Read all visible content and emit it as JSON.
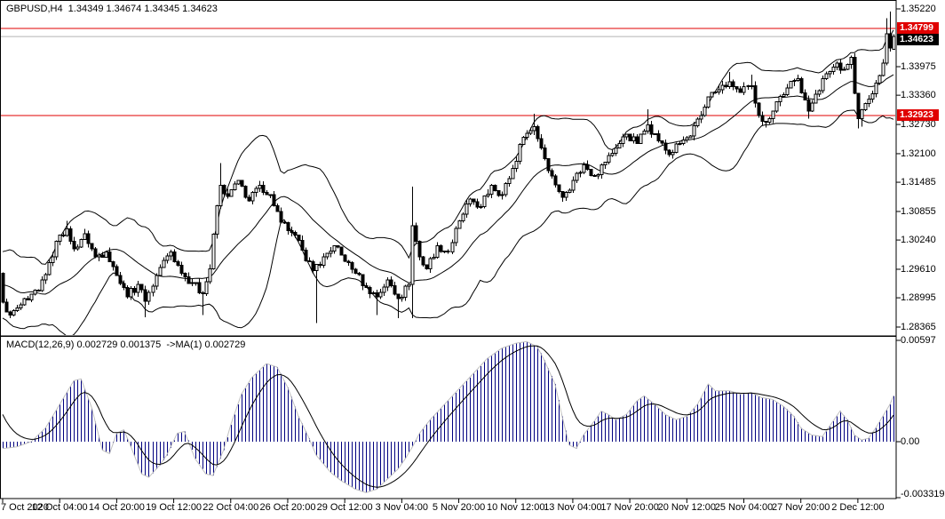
{
  "window": {
    "title_line": "GBPUSD,H4  1.34349 1.34674 1.34345 1.34623"
  },
  "macd_pane": {
    "label": "MACD(12,26,9) 0.002729 0.001375  ->MA(1) 0.002729"
  },
  "price_axis": {
    "tick_labels": [
      "1.35220",
      "1.33975",
      "1.33360",
      "1.32730",
      "1.32100",
      "1.31485",
      "1.30855",
      "1.30240",
      "1.29610",
      "1.28995",
      "1.28365"
    ],
    "tags": [
      {
        "label": "1.34799",
        "value": 1.34799,
        "bg": "#e00000",
        "fg": "#ffffff",
        "role": "red-level"
      },
      {
        "label": "1.34623",
        "value": 1.34623,
        "bg": "#000000",
        "fg": "#ffffff",
        "role": "bid"
      },
      {
        "label": "1.32923",
        "value": 1.32923,
        "bg": "#e00000",
        "fg": "#ffffff",
        "role": "red-level"
      }
    ]
  },
  "macd_axis": {
    "tick_labels": [
      "0.00597",
      "0.00",
      "-0.003319"
    ],
    "values": [
      0.00597,
      0,
      -0.003319
    ]
  },
  "time_axis": {
    "labels": [
      "7 Oct 2020",
      "12 Oct 04:00",
      "14 Oct 20:00",
      "19 Oct 12:00",
      "22 Oct 04:00",
      "26 Oct 20:00",
      "29 Oct 12:00",
      "3 Nov 04:00",
      "5 Nov 20:00",
      "10 Nov 12:00",
      "13 Nov 04:00",
      "17 Nov 20:00",
      "20 Nov 12:00",
      "25 Nov 04:00",
      "27 Nov 20:00",
      "2 Dec 12:00"
    ]
  },
  "colors": {
    "background": "#ffffff",
    "foreground": "#000000",
    "red_line": "#e00000",
    "bid_line": "#c8c8c8",
    "macd_histogram": "#000080",
    "macd_tip_line": "#c0c0c0",
    "macd_signal": "#000000"
  },
  "chart_data": {
    "type": "candlestick",
    "symbol": "GBPUSD",
    "timeframe": "H4",
    "title": "GBPUSD,H4",
    "current_bar": {
      "open": 1.34349,
      "high": 1.34674,
      "low": 1.34345,
      "close": 1.34623
    },
    "bid": 1.34623,
    "red_levels": [
      1.34799,
      1.32923
    ],
    "price_axis_range": [
      1.28365,
      1.3522
    ],
    "bars_count": 251,
    "first_open": 1.2952,
    "close_anchors": [
      [
        0,
        1.289
      ],
      [
        2,
        1.2862
      ],
      [
        4,
        1.2878
      ],
      [
        7,
        1.2895
      ],
      [
        10,
        1.2915
      ],
      [
        13,
        1.2975
      ],
      [
        16,
        1.3035
      ],
      [
        18,
        1.3048
      ],
      [
        20,
        1.3005
      ],
      [
        23,
        1.3038
      ],
      [
        26,
        1.2988
      ],
      [
        29,
        1.2998
      ],
      [
        32,
        1.2948
      ],
      [
        35,
        1.2902
      ],
      [
        38,
        1.2928
      ],
      [
        40,
        1.2892
      ],
      [
        44,
        1.2965
      ],
      [
        47,
        1.2998
      ],
      [
        50,
        1.2952
      ],
      [
        53,
        1.2932
      ],
      [
        56,
        1.2908
      ],
      [
        58,
        1.2962
      ],
      [
        60,
        1.3098
      ],
      [
        61,
        1.3142
      ],
      [
        63,
        1.3118
      ],
      [
        66,
        1.3152
      ],
      [
        69,
        1.3108
      ],
      [
        72,
        1.3142
      ],
      [
        75,
        1.3122
      ],
      [
        78,
        1.3062
      ],
      [
        81,
        1.304
      ],
      [
        84,
        1.3002
      ],
      [
        87,
        1.2958
      ],
      [
        90,
        1.2988
      ],
      [
        93,
        1.3012
      ],
      [
        96,
        1.2978
      ],
      [
        99,
        1.2952
      ],
      [
        102,
        1.2922
      ],
      [
        105,
        1.2902
      ],
      [
        108,
        1.2938
      ],
      [
        111,
        1.2898
      ],
      [
        114,
        1.2928
      ],
      [
        115,
        1.3055
      ],
      [
        117,
        1.2988
      ],
      [
        119,
        1.2962
      ],
      [
        122,
        1.3012
      ],
      [
        125,
        1.2998
      ],
      [
        128,
        1.3065
      ],
      [
        131,
        1.3112
      ],
      [
        134,
        1.3096
      ],
      [
        137,
        1.3142
      ],
      [
        140,
        1.3122
      ],
      [
        143,
        1.3178
      ],
      [
        146,
        1.3245
      ],
      [
        149,
        1.3268
      ],
      [
        151,
        1.3222
      ],
      [
        154,
        1.3162
      ],
      [
        157,
        1.3116
      ],
      [
        160,
        1.3152
      ],
      [
        163,
        1.3186
      ],
      [
        166,
        1.3162
      ],
      [
        169,
        1.3192
      ],
      [
        172,
        1.3222
      ],
      [
        175,
        1.3252
      ],
      [
        178,
        1.3232
      ],
      [
        181,
        1.3272
      ],
      [
        184,
        1.3238
      ],
      [
        187,
        1.3208
      ],
      [
        190,
        1.3232
      ],
      [
        193,
        1.3248
      ],
      [
        196,
        1.3292
      ],
      [
        198,
        1.3332
      ],
      [
        201,
        1.3348
      ],
      [
        204,
        1.3365
      ],
      [
        207,
        1.3342
      ],
      [
        210,
        1.3356
      ],
      [
        212,
        1.3292
      ],
      [
        214,
        1.3278
      ],
      [
        217,
        1.3322
      ],
      [
        220,
        1.3352
      ],
      [
        223,
        1.3372
      ],
      [
        226,
        1.3302
      ],
      [
        228,
        1.3338
      ],
      [
        231,
        1.3382
      ],
      [
        234,
        1.3405
      ],
      [
        236,
        1.3392
      ],
      [
        238,
        1.3418
      ],
      [
        239,
        1.334
      ],
      [
        240,
        1.3286
      ],
      [
        241,
        1.3305
      ],
      [
        243,
        1.3328
      ],
      [
        245,
        1.3362
      ],
      [
        247,
        1.3405
      ],
      [
        248,
        1.3468
      ],
      [
        249,
        1.3438
      ],
      [
        250,
        1.34623
      ]
    ],
    "wick_overrides": [
      {
        "i": 0,
        "hi": 1.2952
      },
      {
        "i": 18,
        "hi": 1.3065
      },
      {
        "i": 40,
        "lo": 1.2858
      },
      {
        "i": 56,
        "lo": 1.2862
      },
      {
        "i": 61,
        "hi": 1.319
      },
      {
        "i": 88,
        "lo": 1.2845
      },
      {
        "i": 105,
        "lo": 1.2862
      },
      {
        "i": 111,
        "lo": 1.2856
      },
      {
        "i": 115,
        "hi": 1.3139,
        "lo": 1.2856
      },
      {
        "i": 149,
        "hi": 1.3296
      },
      {
        "i": 181,
        "hi": 1.3306
      },
      {
        "i": 204,
        "hi": 1.3386
      },
      {
        "i": 210,
        "hi": 1.338
      },
      {
        "i": 214,
        "lo": 1.3266
      },
      {
        "i": 226,
        "lo": 1.3286
      },
      {
        "i": 240,
        "lo": 1.3264
      },
      {
        "i": 241,
        "lo": 1.3268
      },
      {
        "i": 248,
        "hi": 1.3502
      },
      {
        "i": 249,
        "hi": 1.3516
      }
    ],
    "bands": {
      "type": "bollinger",
      "period": 20,
      "deviation": 2
    },
    "macd": {
      "parameters": "12,26,9",
      "current_value": 0.002729,
      "current_signal": 0.001375,
      "overlay": "MA(1)",
      "overlay_value": 0.002729,
      "axis_max": 0.00597,
      "axis_min": -0.003319,
      "signal_seed": 0.0021,
      "anchors": [
        [
          0,
          -0.0004
        ],
        [
          4,
          -0.0003
        ],
        [
          8,
          0.0
        ],
        [
          12,
          0.0008
        ],
        [
          16,
          0.0022
        ],
        [
          20,
          0.0036
        ],
        [
          22,
          0.0037
        ],
        [
          25,
          0.002
        ],
        [
          28,
          -0.0005
        ],
        [
          30,
          -0.0007
        ],
        [
          32,
          0.0005
        ],
        [
          34,
          0.0007
        ],
        [
          36,
          -0.0003
        ],
        [
          39,
          -0.0019
        ],
        [
          41,
          -0.0021
        ],
        [
          44,
          -0.0014
        ],
        [
          46,
          -0.0008
        ],
        [
          49,
          0.0005
        ],
        [
          51,
          0.0006
        ],
        [
          54,
          -0.001
        ],
        [
          57,
          -0.0019
        ],
        [
          59,
          -0.002
        ],
        [
          62,
          -0.0005
        ],
        [
          64,
          0.001
        ],
        [
          67,
          0.0028
        ],
        [
          70,
          0.0038
        ],
        [
          74,
          0.0046
        ],
        [
          77,
          0.0044
        ],
        [
          80,
          0.0032
        ],
        [
          83,
          0.0015
        ],
        [
          86,
          0.0002
        ],
        [
          88,
          -0.0008
        ],
        [
          92,
          -0.0018
        ],
        [
          95,
          -0.0023
        ],
        [
          99,
          -0.0028
        ],
        [
          102,
          -0.003
        ],
        [
          105,
          -0.0028
        ],
        [
          108,
          -0.0022
        ],
        [
          111,
          -0.0016
        ],
        [
          113,
          -0.001
        ],
        [
          115,
          -0.0003
        ],
        [
          117,
          0.0005
        ],
        [
          120,
          0.0013
        ],
        [
          124,
          0.0022
        ],
        [
          128,
          0.0031
        ],
        [
          132,
          0.004
        ],
        [
          136,
          0.0049
        ],
        [
          140,
          0.0055
        ],
        [
          144,
          0.0058
        ],
        [
          147,
          0.0059
        ],
        [
          150,
          0.0056
        ],
        [
          152,
          0.0048
        ],
        [
          155,
          0.0034
        ],
        [
          157,
          0.0015
        ],
        [
          159,
          -0.0002
        ],
        [
          161,
          -0.0004
        ],
        [
          163,
          0.0004
        ],
        [
          166,
          0.0012
        ],
        [
          168,
          0.0018
        ],
        [
          170,
          0.0016
        ],
        [
          172,
          0.0013
        ],
        [
          175,
          0.0016
        ],
        [
          178,
          0.0024
        ],
        [
          180,
          0.0027
        ],
        [
          183,
          0.0022
        ],
        [
          186,
          0.0016
        ],
        [
          189,
          0.0013
        ],
        [
          192,
          0.0015
        ],
        [
          195,
          0.0022
        ],
        [
          198,
          0.0034
        ],
        [
          200,
          0.003
        ],
        [
          204,
          0.003
        ],
        [
          207,
          0.0028
        ],
        [
          210,
          0.0029
        ],
        [
          213,
          0.0026
        ],
        [
          216,
          0.0025
        ],
        [
          219,
          0.0021
        ],
        [
          222,
          0.0015
        ],
        [
          224,
          0.0008
        ],
        [
          227,
          0.0004
        ],
        [
          230,
          0.0003
        ],
        [
          233,
          0.0012
        ],
        [
          235,
          0.0018
        ],
        [
          237,
          0.0013
        ],
        [
          239,
          0.0004
        ],
        [
          241,
          0.0001
        ],
        [
          243,
          0.0002
        ],
        [
          245,
          0.0008
        ],
        [
          247,
          0.0015
        ],
        [
          249,
          0.0022
        ],
        [
          250,
          0.0027
        ]
      ]
    }
  }
}
